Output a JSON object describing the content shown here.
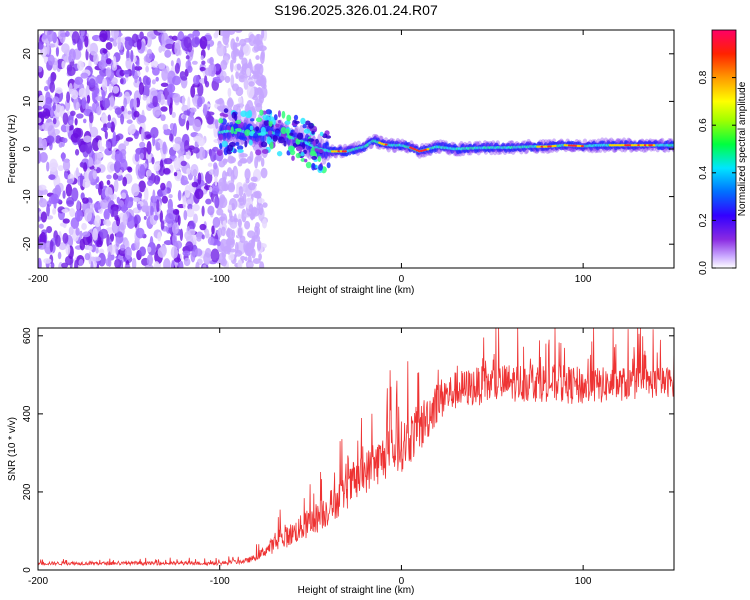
{
  "chart_data": [
    {
      "type": "heatmap",
      "title": "S196.2025.326.01.24.R07",
      "xlabel": "Height of straight line (km)",
      "ylabel": "Frequency (Hz)",
      "xlim": [
        -200,
        150
      ],
      "ylim": [
        -25,
        25
      ],
      "x_ticks": [
        -200,
        -100,
        0,
        100
      ],
      "y_ticks": [
        -20,
        -10,
        0,
        10,
        20
      ],
      "colorbar": {
        "label": "Normalized spectral amplitude",
        "range": [
          0.0,
          1.0
        ],
        "ticks": [
          0.0,
          0.2,
          0.4,
          0.6,
          0.8
        ],
        "tick_labels": [
          "0.0",
          "0.2",
          "0.4",
          "0.6",
          "0.8"
        ],
        "colors": [
          "#ffffff",
          "#9c5cff",
          "#6a00ff",
          "#0000ff",
          "#00e5ff",
          "#00ff40",
          "#ffff00",
          "#ff8c00",
          "#ff0000",
          "#ff0066"
        ]
      },
      "noise_region_x": [
        -200,
        -80
      ],
      "signal_track": {
        "x": [
          -100,
          -90,
          -80,
          -72,
          -65,
          -55,
          -45,
          -38,
          -30,
          -20,
          -15,
          -10,
          -5,
          0,
          5,
          10,
          15,
          20,
          30,
          40,
          50,
          60,
          70,
          80,
          90,
          100,
          110,
          120,
          130,
          140,
          150
        ],
        "freq": [
          3.5,
          4,
          3,
          3.5,
          3,
          1.8,
          0,
          -0.5,
          -0.5,
          0.5,
          1.8,
          1,
          0.8,
          0.8,
          0.3,
          -0.5,
          0,
          0.5,
          0,
          0.2,
          0.3,
          0.3,
          0.5,
          0.5,
          0.8,
          0.6,
          0.8,
          0.8,
          0.8,
          0.8,
          0.8
        ]
      }
    },
    {
      "type": "line",
      "title": "",
      "xlabel": "Height of straight line (km)",
      "ylabel": "SNR (10 * v/v)",
      "xlim": [
        -200,
        150
      ],
      "ylim": [
        0,
        620
      ],
      "x_ticks": [
        -200,
        -100,
        0,
        100
      ],
      "y_ticks": [
        0,
        200,
        400,
        600
      ],
      "series": [
        {
          "name": "SNR",
          "color": "#ee3333",
          "x": [
            -200,
            -150,
            -100,
            -90,
            -85,
            -80,
            -70,
            -60,
            -50,
            -40,
            -30,
            -20,
            -10,
            0,
            10,
            20,
            30,
            40,
            50,
            60,
            80,
            100,
            120,
            150
          ],
          "values": [
            18,
            18,
            18,
            22,
            25,
            35,
            70,
            100,
            130,
            165,
            215,
            260,
            300,
            330,
            375,
            445,
            470,
            480,
            485,
            490,
            490,
            480,
            485,
            490
          ],
          "spread": [
            8,
            8,
            8,
            10,
            12,
            15,
            40,
            55,
            70,
            80,
            90,
            100,
            110,
            120,
            120,
            100,
            90,
            90,
            90,
            90,
            90,
            90,
            80,
            70
          ]
        }
      ]
    }
  ]
}
